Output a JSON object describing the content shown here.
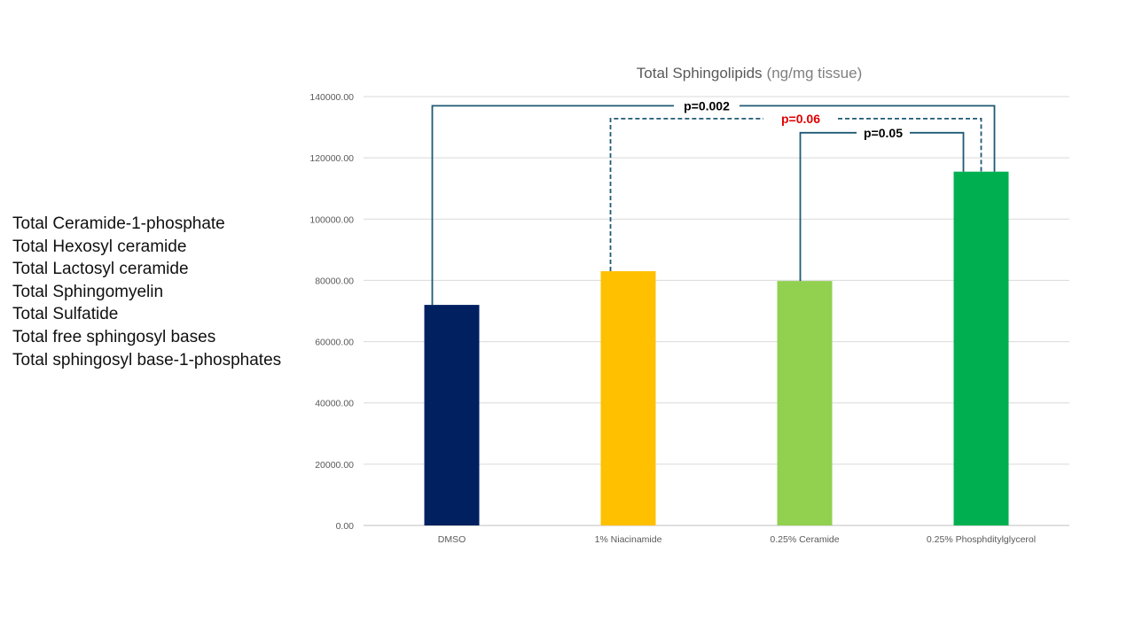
{
  "side_list": [
    "Total Ceramide-1-phosphate",
    "Total Hexosyl ceramide",
    "Total Lactosyl ceramide",
    "Total Sphingomyelin",
    "Total Sulfatide",
    "Total free sphingosyl bases",
    "Total sphingosyl base-1-phosphates"
  ],
  "chart_data": {
    "type": "bar",
    "title": "Total Sphingolipids",
    "title_unit": "(ng/mg tissue)",
    "xlabel": "",
    "ylabel": "",
    "categories": [
      "DMSO",
      "1% Niacinamide",
      "0.25% Ceramide",
      "0.25% Phosphditylglycerol"
    ],
    "values": [
      72000,
      83000,
      79800,
      115500
    ],
    "colors": [
      "#002060",
      "#FFC000",
      "#92D050",
      "#00B050"
    ],
    "ylim": [
      0,
      140000
    ],
    "yticks": [
      "0.00",
      "20000.00",
      "40000.00",
      "60000.00",
      "80000.00",
      "100000.00",
      "120000.00",
      "140000.00"
    ],
    "grid": true,
    "legend": "none",
    "annotations": [
      {
        "label": "p=0.002",
        "from": "DMSO",
        "to": "0.25% Phosphditylglycerol",
        "level": 137000,
        "style": "solid",
        "color": "#000000"
      },
      {
        "label": "p=0.06",
        "from": "1% Niacinamide",
        "to": "0.25% Phosphditylglycerol",
        "level": 132800,
        "style": "dashed",
        "color": "#E00000"
      },
      {
        "label": "p=0.05",
        "from": "0.25% Ceramide",
        "to": "0.25% Phosphditylglycerol",
        "level": 128200,
        "style": "solid",
        "color": "#000000"
      }
    ]
  }
}
